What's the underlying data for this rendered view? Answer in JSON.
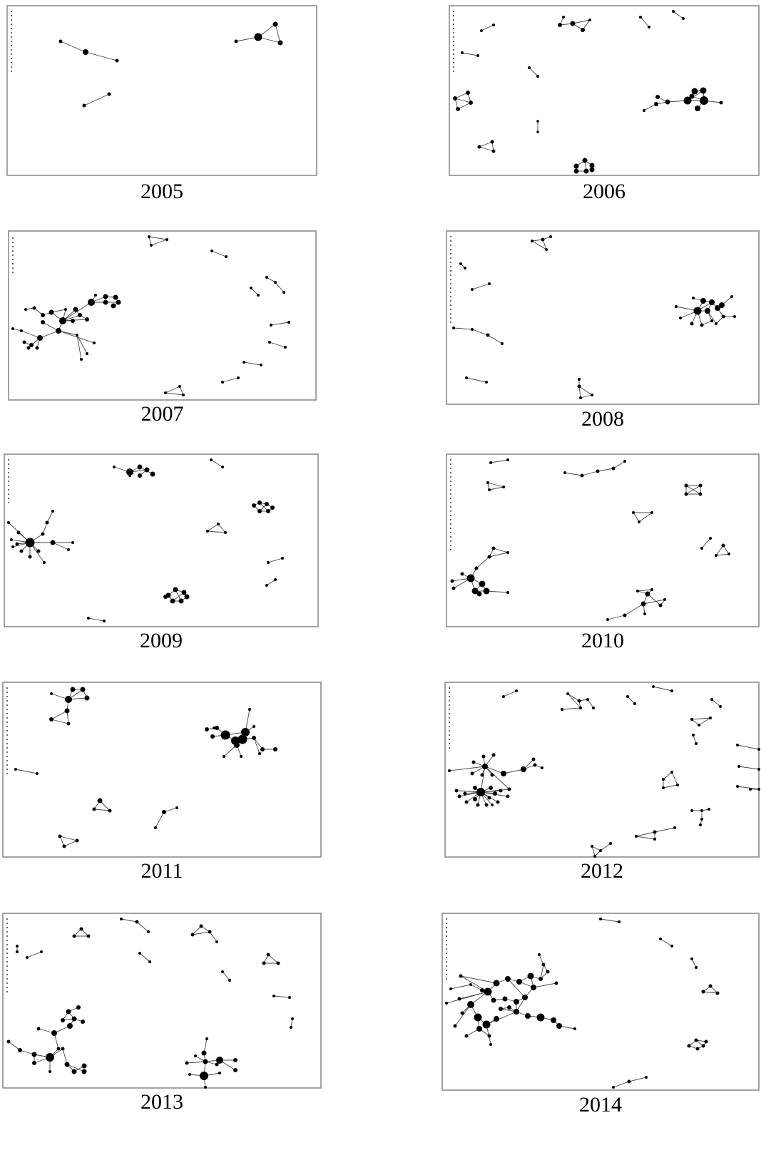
{
  "panels": [
    {
      "year": "2005"
    },
    {
      "year": "2006"
    },
    {
      "year": "2007"
    },
    {
      "year": "2008"
    },
    {
      "year": "2009"
    },
    {
      "year": "2010"
    },
    {
      "year": "2011"
    },
    {
      "year": "2012"
    },
    {
      "year": "2013"
    },
    {
      "year": "2014"
    }
  ]
}
